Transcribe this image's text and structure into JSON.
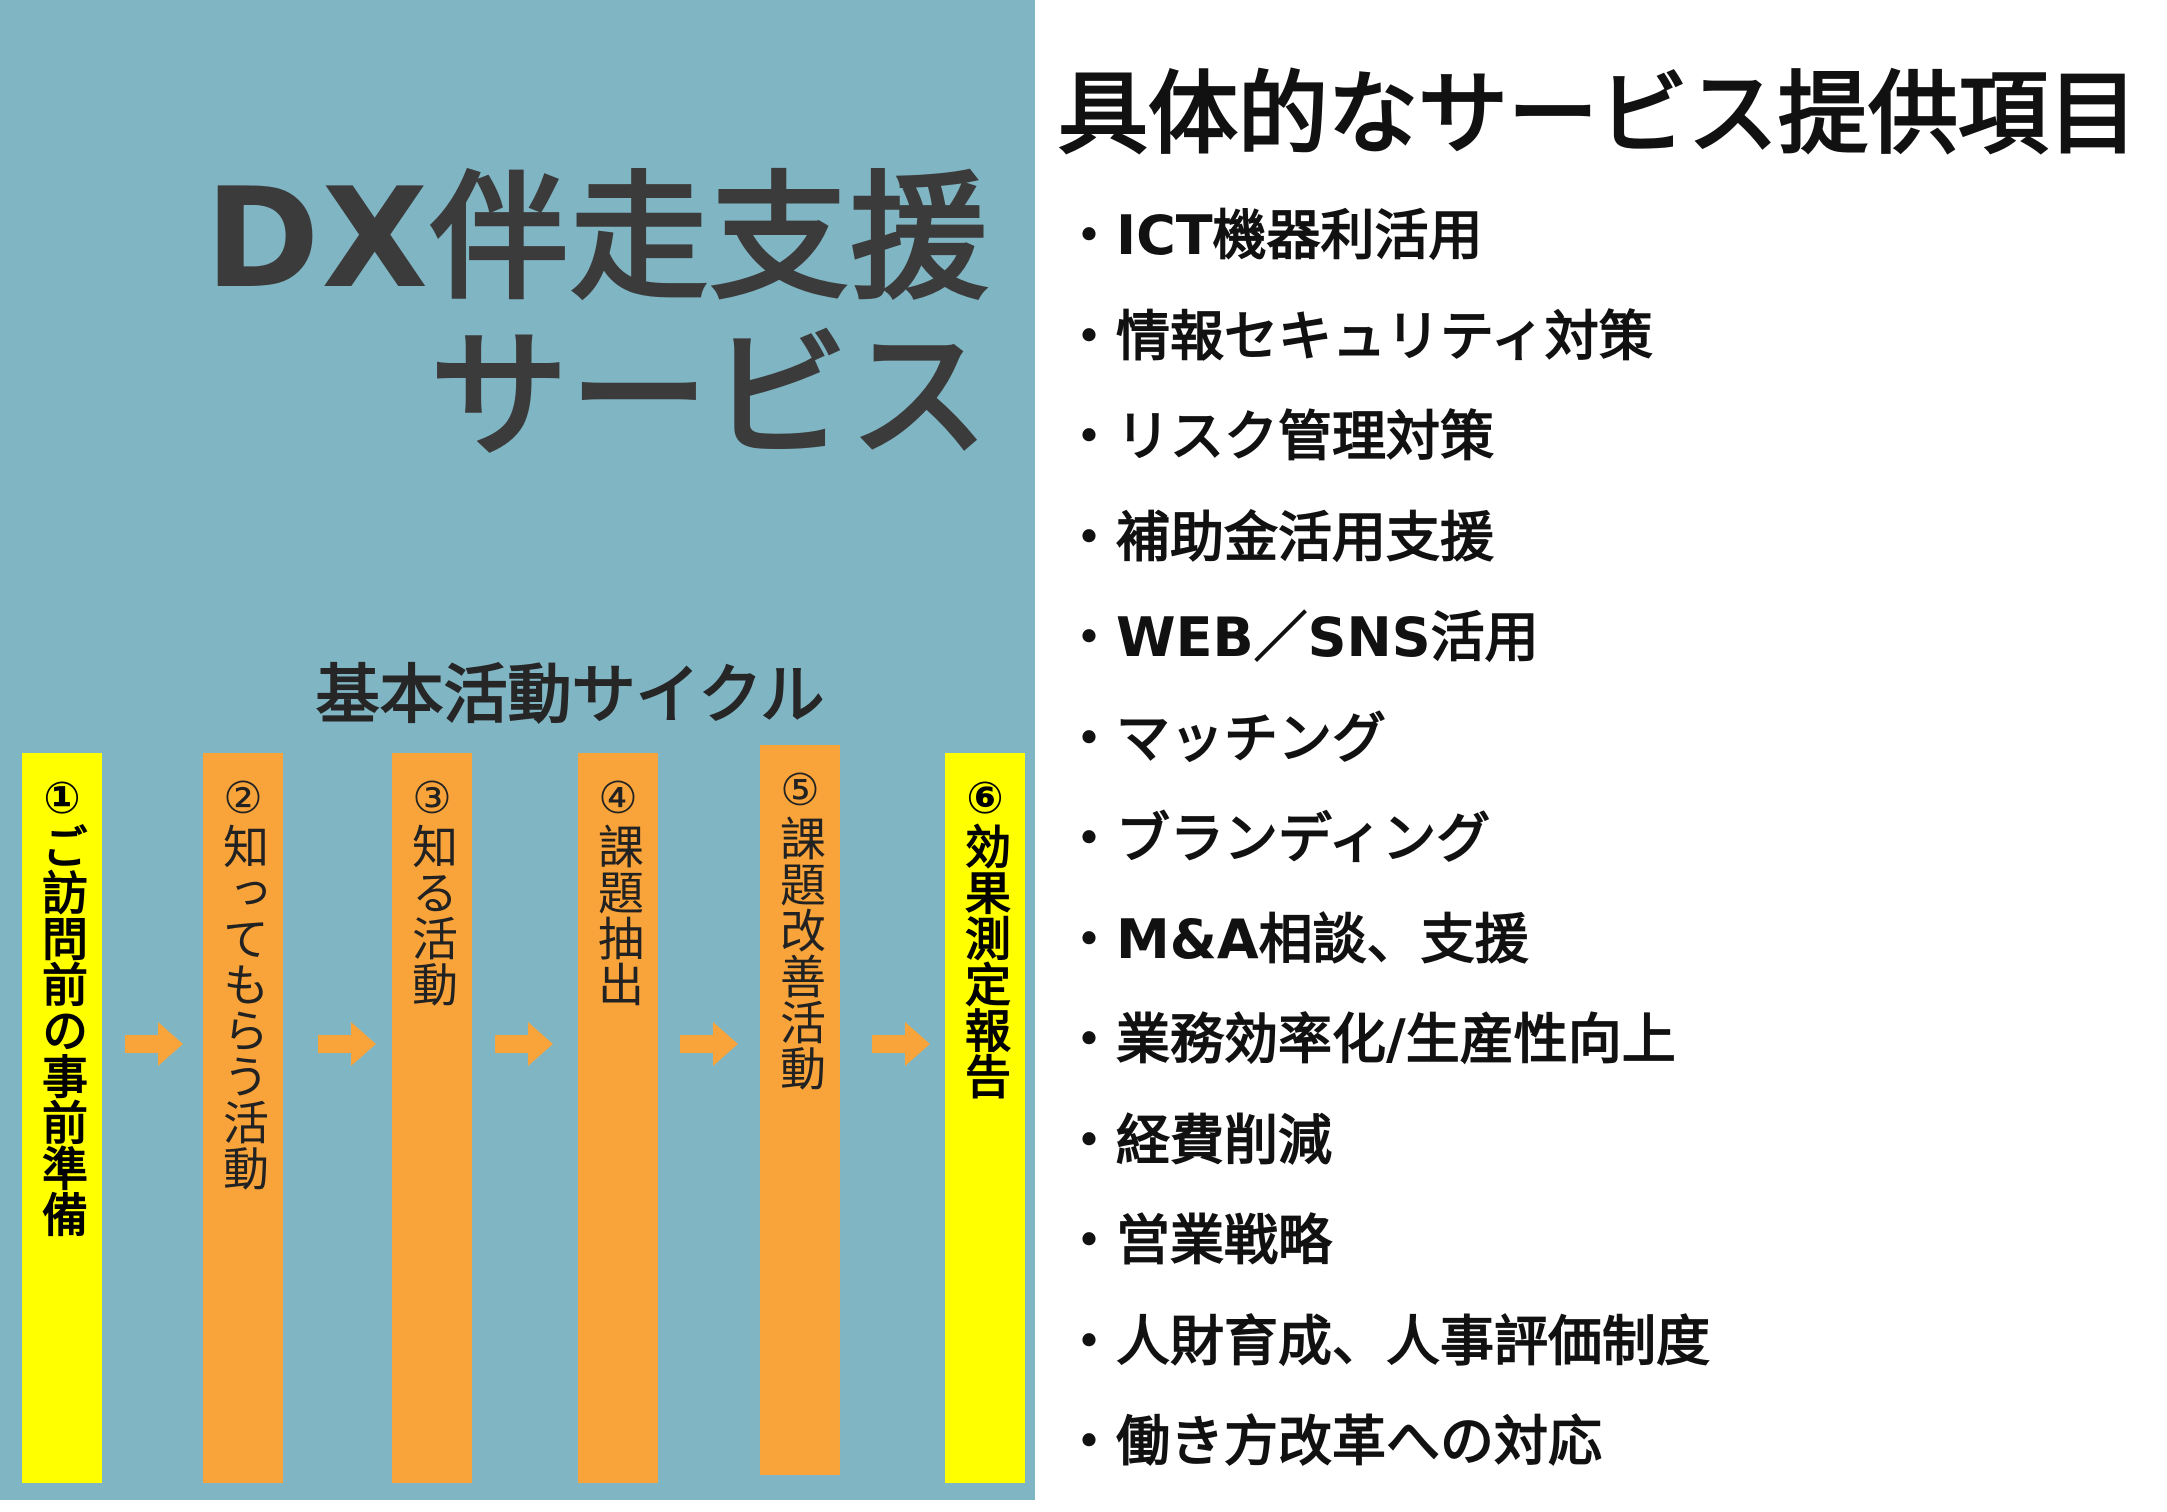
{
  "left": {
    "title_line1": "DX伴走支援",
    "title_line2": "サービス",
    "cycle_title": "基本活動サイクル",
    "steps": [
      {
        "num": "①",
        "label": "ご訪問前の事前準備",
        "color": "#ffff00"
      },
      {
        "num": "②",
        "label": "知ってもらう活動",
        "color": "#f9a43a"
      },
      {
        "num": "③",
        "label": "知る活動",
        "color": "#f9a43a"
      },
      {
        "num": "④",
        "label": "課題抽出",
        "color": "#f9a43a"
      },
      {
        "num": "⑤",
        "label": "課題改善活動",
        "color": "#f9a43a"
      },
      {
        "num": "⑥",
        "label": "効果測定報告",
        "color": "#ffff00"
      }
    ],
    "arrow_color": "#f9a43a",
    "background": "#80b5c4"
  },
  "right": {
    "title": "具体的なサービス提供項目",
    "items": [
      "・ICT機器利活用",
      "・情報セキュリティ対策",
      "・リスク管理対策",
      "・補助金活用支援",
      "・WEB／SNS活用",
      "・マッチング",
      "・ブランディング",
      "・M&A相談、支援",
      "・業務効率化/生産性向上",
      "・経費削減",
      "・営業戦略",
      "・人財育成、人事評価制度",
      "・働き方改革への対応"
    ]
  }
}
